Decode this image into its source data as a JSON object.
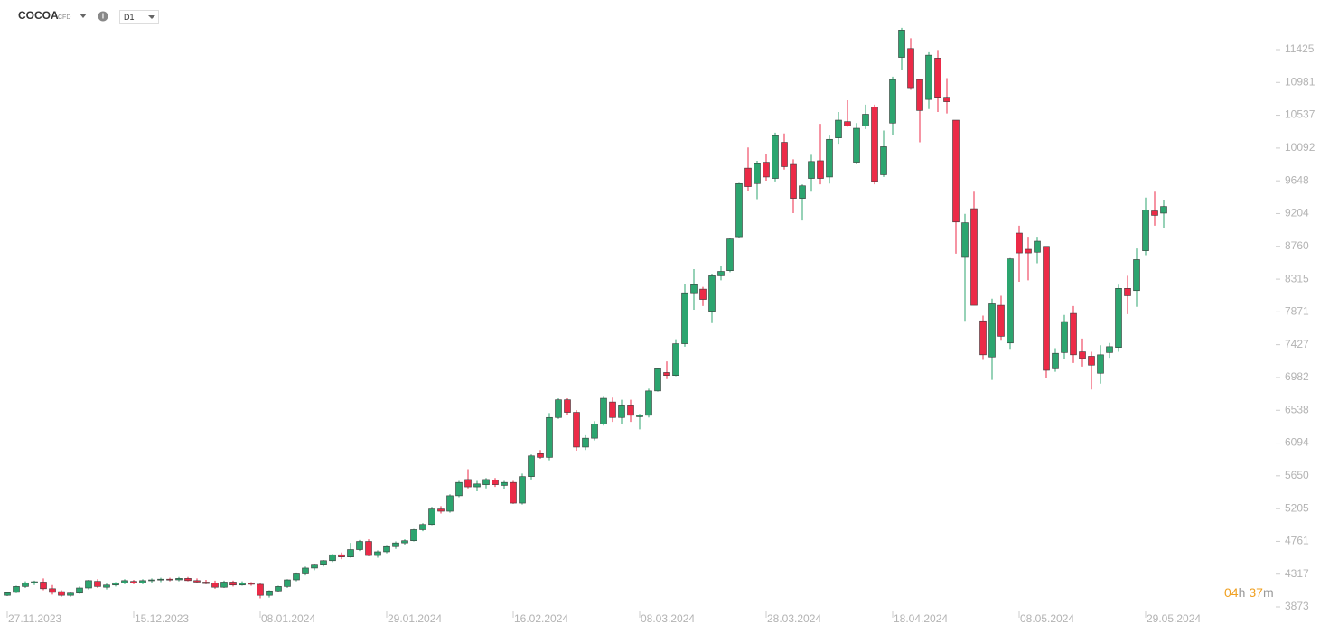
{
  "header": {
    "symbol": "COCOA",
    "instrument": "CFD",
    "interval": "D1"
  },
  "timer": {
    "hours": "04",
    "hours_unit": "h",
    "minutes": "37",
    "minutes_unit": "m"
  },
  "chart_data": {
    "type": "candlestick",
    "up_color": "#2ca56f",
    "down_color": "#ec2a47",
    "categories": [
      "27.11.2023",
      null,
      null,
      null,
      null,
      null,
      null,
      null,
      null,
      null,
      null,
      null,
      null,
      null,
      "15.12.2023",
      null,
      null,
      null,
      null,
      null,
      null,
      null,
      null,
      null,
      null,
      null,
      null,
      null,
      "08.01.2024",
      null,
      null,
      null,
      null,
      null,
      null,
      null,
      null,
      null,
      null,
      null,
      null,
      null,
      "29.01.2024",
      null,
      null,
      null,
      null,
      null,
      null,
      null,
      null,
      null,
      null,
      null,
      null,
      null,
      "16.02.2024",
      null,
      null,
      null,
      null,
      null,
      null,
      null,
      null,
      null,
      null,
      null,
      null,
      null,
      "08.03.2024",
      null,
      null,
      null,
      null,
      null,
      null,
      null,
      null,
      null,
      null,
      null,
      null,
      null,
      "28.03.2024",
      null,
      null,
      null,
      null,
      null,
      null,
      null,
      null,
      null,
      null,
      null,
      null,
      null,
      "18.04.2024",
      null,
      null,
      null,
      null,
      null,
      null,
      null,
      null,
      null,
      null,
      null,
      null,
      null,
      "08.05.2024",
      null,
      null,
      null,
      null,
      null,
      null,
      null,
      null,
      null,
      null,
      null,
      null,
      null,
      "29.05.2024",
      null,
      null
    ],
    "open": [
      4030,
      4070,
      4150,
      4200,
      4210,
      4120,
      4080,
      4030,
      4060,
      4130,
      4220,
      4140,
      4170,
      4200,
      4220,
      4200,
      4230,
      4240,
      4250,
      4240,
      4260,
      4230,
      4210,
      4200,
      4140,
      4210,
      4170,
      4200,
      4180,
      4030,
      4090,
      4150,
      4240,
      4320,
      4400,
      4440,
      4500,
      4580,
      4550,
      4650,
      4760,
      4570,
      4620,
      4690,
      4740,
      4770,
      4920,
      4990,
      5200,
      5170,
      5380,
      5600,
      5500,
      5530,
      5590,
      5520,
      5560,
      5280,
      5640,
      5950,
      5900,
      6440,
      6680,
      6510,
      6040,
      6160,
      6350,
      6650,
      6440,
      6610,
      6450,
      6470,
      6800,
      7050,
      7010,
      7440,
      8130,
      8180,
      7880,
      8360,
      8430,
      8890,
      9820,
      9610,
      9900,
      9680,
      10170,
      9870,
      9410,
      9680,
      9920,
      9700,
      10230,
      10450,
      9900,
      10390,
      10650,
      9730,
      10430,
      11320,
      11440,
      11020,
      10750,
      11310,
      10780,
      10470,
      8610,
      9270,
      7750,
      7260,
      7960,
      7450,
      8940,
      8720,
      8680,
      8760,
      7100,
      7320,
      7850,
      7330,
      7270,
      7040,
      7320,
      7390,
      8190,
      8160,
      8700,
      9240,
      9210
    ],
    "high": [
      4075,
      4160,
      4220,
      4230,
      4260,
      4170,
      4100,
      4080,
      4150,
      4240,
      4250,
      4190,
      4210,
      4250,
      4240,
      4250,
      4260,
      4270,
      4270,
      4280,
      4280,
      4260,
      4240,
      4230,
      4230,
      4230,
      4220,
      4210,
      4200,
      4100,
      4160,
      4250,
      4340,
      4420,
      4460,
      4510,
      4590,
      4610,
      4740,
      4780,
      4790,
      4640,
      4700,
      4760,
      4790,
      4930,
      5010,
      5230,
      5240,
      5400,
      5580,
      5740,
      5580,
      5620,
      5620,
      5580,
      5580,
      5680,
      5940,
      6000,
      6500,
      6700,
      6700,
      6540,
      6200,
      6390,
      6720,
      6710,
      6680,
      6680,
      6490,
      6830,
      7110,
      7200,
      7500,
      8250,
      8450,
      8210,
      8390,
      8500,
      8870,
      9620,
      10100,
      9920,
      10010,
      10300,
      10290,
      9940,
      9600,
      10000,
      10420,
      10260,
      10580,
      10740,
      10430,
      10680,
      10680,
      10330,
      11060,
      11720,
      11580,
      11030,
      11390,
      11420,
      11040,
      10470,
      9200,
      9500,
      7820,
      8050,
      8090,
      8600,
      9040,
      8890,
      8890,
      8760,
      7380,
      7830,
      7950,
      7510,
      7330,
      7420,
      7450,
      8240,
      8360,
      8730,
      9420,
      9500,
      9390
    ],
    "low": [
      4020,
      4060,
      4130,
      4170,
      4100,
      4040,
      4010,
      4010,
      4050,
      4110,
      4130,
      4110,
      4150,
      4180,
      4180,
      4180,
      4200,
      4210,
      4220,
      4220,
      4220,
      4200,
      4180,
      4120,
      4130,
      4150,
      4160,
      4160,
      3990,
      4000,
      4070,
      4130,
      4220,
      4300,
      4370,
      4420,
      4480,
      4520,
      4540,
      4630,
      4560,
      4540,
      4600,
      4660,
      4710,
      4760,
      4900,
      4980,
      5140,
      5150,
      5360,
      5480,
      5440,
      5480,
      5500,
      5470,
      5270,
      5260,
      5600,
      5880,
      5860,
      6420,
      6480,
      5990,
      6000,
      6130,
      6330,
      6380,
      6350,
      6380,
      6280,
      6440,
      6790,
      6960,
      7000,
      7400,
      7900,
      7950,
      7720,
      8300,
      8410,
      8870,
      9510,
      9400,
      9650,
      9640,
      9800,
      9210,
      9110,
      9500,
      9600,
      9610,
      10150,
      10380,
      9870,
      10350,
      9600,
      9700,
      10270,
      11150,
      10880,
      10170,
      10620,
      10580,
      10560,
      8660,
      7750,
      7960,
      7220,
      6950,
      7480,
      7370,
      8280,
      8300,
      8530,
      6970,
      7060,
      7230,
      7180,
      7130,
      6820,
      6900,
      7250,
      7330,
      7840,
      7940,
      8640,
      9040,
      9010
    ],
    "close": [
      4065,
      4150,
      4200,
      4215,
      4120,
      4070,
      4030,
      4060,
      4130,
      4230,
      4150,
      4170,
      4200,
      4230,
      4200,
      4230,
      4240,
      4250,
      4240,
      4260,
      4230,
      4210,
      4190,
      4140,
      4210,
      4170,
      4200,
      4180,
      4030,
      4090,
      4150,
      4240,
      4320,
      4400,
      4440,
      4500,
      4580,
      4550,
      4650,
      4760,
      4570,
      4620,
      4690,
      4740,
      4770,
      4920,
      4990,
      5200,
      5170,
      5380,
      5560,
      5500,
      5540,
      5600,
      5530,
      5560,
      5280,
      5640,
      5920,
      5900,
      6440,
      6680,
      6510,
      6040,
      6160,
      6350,
      6700,
      6440,
      6610,
      6470,
      6470,
      6800,
      7100,
      7010,
      7440,
      8130,
      8240,
      8040,
      8360,
      8420,
      8860,
      9610,
      9570,
      9880,
      9700,
      10260,
      9840,
      9410,
      9580,
      9910,
      9680,
      10210,
      10470,
      10390,
      10360,
      10550,
      9640,
      10110,
      11020,
      11690,
      10910,
      10600,
      11350,
      10780,
      10720,
      9090,
      9080,
      7960,
      7290,
      7980,
      7540,
      8590,
      8670,
      8670,
      8830,
      7080,
      7310,
      7740,
      7290,
      7240,
      7150,
      7290,
      7400,
      8190,
      8090,
      8580,
      9250,
      9180,
      9300
    ],
    "ylim": [
      3873,
      11425
    ],
    "yticks": [
      3873,
      4317,
      4761,
      5205,
      5650,
      6094,
      6538,
      6982,
      7427,
      7871,
      8315,
      8760,
      9204,
      9648,
      10092,
      10537,
      10981,
      11425
    ]
  }
}
